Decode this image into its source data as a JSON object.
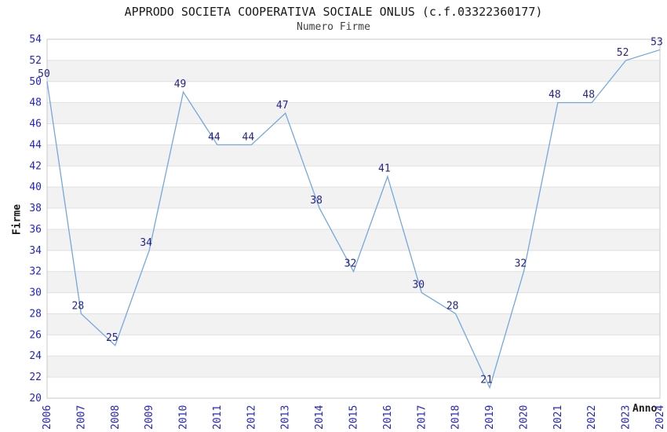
{
  "chart_data": {
    "type": "line",
    "title": "APPRODO SOCIETA COOPERATIVA SOCIALE ONLUS (c.f.03322360177)",
    "subtitle": "Numero Firme",
    "xlabel": "Anno",
    "ylabel": "Firme",
    "categories": [
      "2006",
      "2007",
      "2008",
      "2009",
      "2010",
      "2011",
      "2012",
      "2013",
      "2014",
      "2015",
      "2016",
      "2017",
      "2018",
      "2019",
      "2020",
      "2021",
      "2022",
      "2023",
      "2024"
    ],
    "values": [
      50,
      28,
      25,
      34,
      49,
      44,
      44,
      47,
      38,
      32,
      41,
      30,
      28,
      21,
      32,
      48,
      48,
      52,
      53
    ],
    "ylim": [
      20,
      54
    ],
    "ytick_step": 2,
    "grid": "horizontal",
    "banded_background": true,
    "point_labels": true,
    "legend": "none",
    "colors": {
      "line": "#74a7e0",
      "point_label": "#24248a",
      "tick_label": "#2323cc",
      "axis_label": "#1a1a1a",
      "title": "#1a1a1a",
      "subtitle": "#404040",
      "band": "#f2f2f2",
      "grid": "#e0e0e0",
      "plot_border": "#c8c8c8",
      "background": "#ffffff"
    }
  }
}
